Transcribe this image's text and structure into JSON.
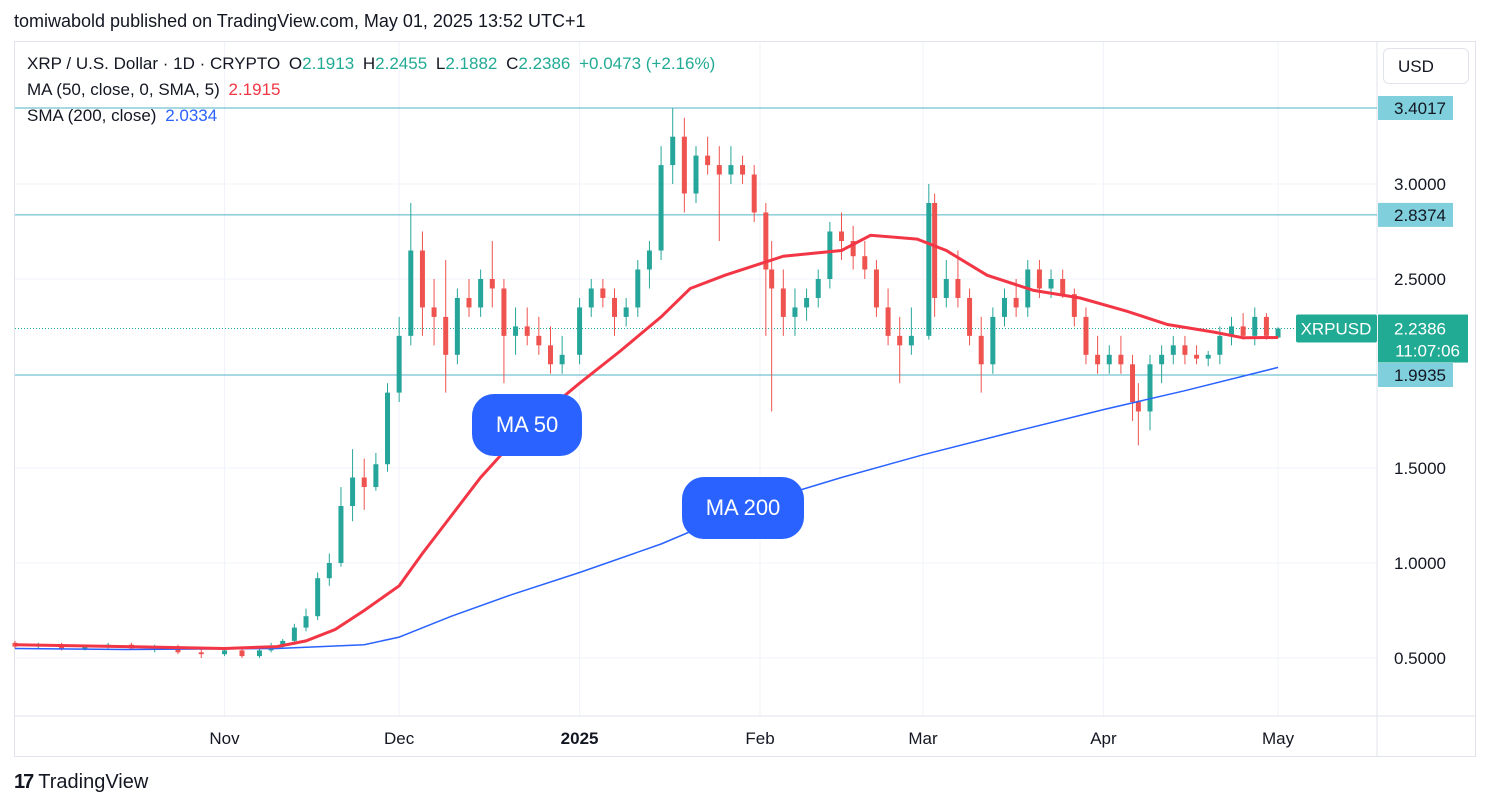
{
  "header": {
    "publisher": "tomiwabold published on TradingView.com, May 01, 2025 13:52 UTC+1"
  },
  "legend": {
    "title": "XRP / U.S. Dollar · 1D · CRYPTO",
    "o_label": "O",
    "o_value": "2.1913",
    "h_label": "H",
    "h_value": "2.2455",
    "l_label": "L",
    "l_value": "2.1882",
    "c_label": "C",
    "c_value": "2.2386",
    "change": "+0.0473 (+2.16%)",
    "ma50_label": "MA (50, close, 0, SMA, 5)",
    "ma50_value": "2.1915",
    "sma200_label": "SMA (200, close)",
    "sma200_value": "2.0334"
  },
  "currency_button": "USD",
  "callouts": {
    "ma50": "MA 50",
    "ma200": "MA 200"
  },
  "footer": {
    "logo_text": "TradingView",
    "logo_icon": "tradingview-logo-icon"
  },
  "colors": {
    "up": "#26a69a",
    "down": "#ef5350",
    "ma50": "#f23645",
    "sma200": "#2962ff",
    "hline": "#4fb3c4",
    "price_label": "#7fcfdc",
    "last_price": "#22ab94"
  },
  "chart_data": {
    "type": "candlestick",
    "symbol": "XRPUSD",
    "interval": "1D",
    "y_ticks": [
      0.5,
      1.0,
      1.5,
      2.5,
      3.0
    ],
    "y_tick_labels": [
      "0.5000",
      "1.0000",
      "1.5000",
      "2.5000",
      "3.0000"
    ],
    "ylim": [
      0.2,
      3.75
    ],
    "x_ticks": [
      "2024-11-01",
      "2024-12-01",
      "2025-01-01",
      "2025-02-01",
      "2025-03-01",
      "2025-04-01",
      "2025-05-01"
    ],
    "x_tick_labels": [
      "Nov",
      "Dec",
      "2025",
      "Feb",
      "Mar",
      "Apr",
      "May"
    ],
    "x_range": [
      "2024-09-26",
      "2025-05-18"
    ],
    "horizontal_lines": [
      {
        "value": 3.4017,
        "label": "3.4017"
      },
      {
        "value": 2.8374,
        "label": "2.8374"
      },
      {
        "value": 1.9935,
        "label": "1.9935"
      }
    ],
    "last_price": {
      "value": 2.2386,
      "symbol_label": "XRPUSD",
      "label": "2.2386",
      "countdown": "11:07:06"
    },
    "ma50": [
      [
        "2024-09-26",
        0.57
      ],
      [
        "2024-10-15",
        0.56
      ],
      [
        "2024-11-01",
        0.55
      ],
      [
        "2024-11-10",
        0.56
      ],
      [
        "2024-11-15",
        0.59
      ],
      [
        "2024-11-20",
        0.65
      ],
      [
        "2024-11-25",
        0.75
      ],
      [
        "2024-12-01",
        0.88
      ],
      [
        "2024-12-05",
        1.05
      ],
      [
        "2024-12-10",
        1.25
      ],
      [
        "2024-12-15",
        1.45
      ],
      [
        "2024-12-20",
        1.62
      ],
      [
        "2024-12-25",
        1.77
      ],
      [
        "2025-01-01",
        1.95
      ],
      [
        "2025-01-08",
        2.12
      ],
      [
        "2025-01-15",
        2.3
      ],
      [
        "2025-01-20",
        2.45
      ],
      [
        "2025-01-26",
        2.52
      ],
      [
        "2025-02-01",
        2.58
      ],
      [
        "2025-02-05",
        2.62
      ],
      [
        "2025-02-15",
        2.65
      ],
      [
        "2025-02-20",
        2.73
      ],
      [
        "2025-02-28",
        2.71
      ],
      [
        "2025-03-05",
        2.65
      ],
      [
        "2025-03-12",
        2.52
      ],
      [
        "2025-03-20",
        2.44
      ],
      [
        "2025-03-28",
        2.4
      ],
      [
        "2025-04-05",
        2.33
      ],
      [
        "2025-04-12",
        2.26
      ],
      [
        "2025-04-20",
        2.22
      ],
      [
        "2025-04-25",
        2.19
      ],
      [
        "2025-05-01",
        2.1915
      ]
    ],
    "sma200": [
      [
        "2024-09-26",
        0.55
      ],
      [
        "2024-10-15",
        0.545
      ],
      [
        "2024-11-10",
        0.55
      ],
      [
        "2024-11-25",
        0.57
      ],
      [
        "2024-12-01",
        0.61
      ],
      [
        "2024-12-10",
        0.72
      ],
      [
        "2024-12-20",
        0.83
      ],
      [
        "2025-01-01",
        0.95
      ],
      [
        "2025-01-15",
        1.1
      ],
      [
        "2025-02-01",
        1.32
      ],
      [
        "2025-02-15",
        1.45
      ],
      [
        "2025-03-01",
        1.57
      ],
      [
        "2025-03-15",
        1.68
      ],
      [
        "2025-04-01",
        1.81
      ],
      [
        "2025-04-15",
        1.91
      ],
      [
        "2025-05-01",
        2.0334
      ]
    ],
    "ohlc": [
      [
        "2024-09-26",
        0.58,
        0.59,
        0.55,
        0.56
      ],
      [
        "2024-09-30",
        0.56,
        0.58,
        0.55,
        0.57
      ],
      [
        "2024-10-04",
        0.57,
        0.58,
        0.54,
        0.55
      ],
      [
        "2024-10-08",
        0.55,
        0.57,
        0.54,
        0.56
      ],
      [
        "2024-10-12",
        0.56,
        0.58,
        0.55,
        0.57
      ],
      [
        "2024-10-16",
        0.57,
        0.58,
        0.55,
        0.55
      ],
      [
        "2024-10-20",
        0.55,
        0.57,
        0.53,
        0.56
      ],
      [
        "2024-10-24",
        0.56,
        0.57,
        0.52,
        0.53
      ],
      [
        "2024-10-28",
        0.53,
        0.55,
        0.5,
        0.52
      ],
      [
        "2024-11-01",
        0.52,
        0.55,
        0.51,
        0.54
      ],
      [
        "2024-11-04",
        0.54,
        0.56,
        0.5,
        0.51
      ],
      [
        "2024-11-07",
        0.51,
        0.55,
        0.5,
        0.54
      ],
      [
        "2024-11-09",
        0.54,
        0.58,
        0.53,
        0.56
      ],
      [
        "2024-11-11",
        0.56,
        0.6,
        0.55,
        0.59
      ],
      [
        "2024-11-13",
        0.59,
        0.68,
        0.57,
        0.66
      ],
      [
        "2024-11-15",
        0.66,
        0.76,
        0.64,
        0.72
      ],
      [
        "2024-11-17",
        0.72,
        0.95,
        0.7,
        0.92
      ],
      [
        "2024-11-19",
        0.92,
        1.05,
        0.88,
        1.0
      ],
      [
        "2024-11-21",
        1.0,
        1.4,
        0.98,
        1.3
      ],
      [
        "2024-11-23",
        1.3,
        1.6,
        1.22,
        1.45
      ],
      [
        "2024-11-25",
        1.45,
        1.55,
        1.28,
        1.4
      ],
      [
        "2024-11-27",
        1.4,
        1.58,
        1.38,
        1.52
      ],
      [
        "2024-11-29",
        1.52,
        1.95,
        1.48,
        1.9
      ],
      [
        "2024-12-01",
        1.9,
        2.3,
        1.85,
        2.2
      ],
      [
        "2024-12-03",
        2.2,
        2.9,
        2.15,
        2.65
      ],
      [
        "2024-12-05",
        2.65,
        2.75,
        2.2,
        2.35
      ],
      [
        "2024-12-07",
        2.35,
        2.5,
        2.15,
        2.3
      ],
      [
        "2024-12-09",
        2.3,
        2.6,
        1.9,
        2.1
      ],
      [
        "2024-12-11",
        2.1,
        2.45,
        2.05,
        2.4
      ],
      [
        "2024-12-13",
        2.4,
        2.5,
        2.3,
        2.35
      ],
      [
        "2024-12-15",
        2.35,
        2.55,
        2.3,
        2.5
      ],
      [
        "2024-12-17",
        2.5,
        2.7,
        2.35,
        2.45
      ],
      [
        "2024-12-19",
        2.45,
        2.5,
        1.95,
        2.2
      ],
      [
        "2024-12-21",
        2.2,
        2.35,
        2.1,
        2.25
      ],
      [
        "2024-12-23",
        2.25,
        2.35,
        2.15,
        2.2
      ],
      [
        "2024-12-25",
        2.2,
        2.3,
        2.1,
        2.15
      ],
      [
        "2024-12-27",
        2.15,
        2.25,
        2.0,
        2.05
      ],
      [
        "2024-12-29",
        2.05,
        2.2,
        2.0,
        2.1
      ],
      [
        "2025-01-01",
        2.1,
        2.4,
        2.05,
        2.35
      ],
      [
        "2025-01-03",
        2.35,
        2.5,
        2.3,
        2.45
      ],
      [
        "2025-01-05",
        2.45,
        2.5,
        2.35,
        2.4
      ],
      [
        "2025-01-07",
        2.4,
        2.45,
        2.2,
        2.3
      ],
      [
        "2025-01-09",
        2.3,
        2.4,
        2.25,
        2.35
      ],
      [
        "2025-01-11",
        2.35,
        2.6,
        2.3,
        2.55
      ],
      [
        "2025-01-13",
        2.55,
        2.7,
        2.45,
        2.65
      ],
      [
        "2025-01-15",
        2.65,
        3.2,
        2.6,
        3.1
      ],
      [
        "2025-01-17",
        3.1,
        3.4,
        3.0,
        3.25
      ],
      [
        "2025-01-19",
        3.25,
        3.35,
        2.85,
        2.95
      ],
      [
        "2025-01-21",
        2.95,
        3.2,
        2.9,
        3.15
      ],
      [
        "2025-01-23",
        3.15,
        3.25,
        3.05,
        3.1
      ],
      [
        "2025-01-25",
        3.1,
        3.2,
        2.7,
        3.05
      ],
      [
        "2025-01-27",
        3.05,
        3.2,
        3.0,
        3.1
      ],
      [
        "2025-01-29",
        3.1,
        3.15,
        3.0,
        3.05
      ],
      [
        "2025-01-31",
        3.05,
        3.1,
        2.8,
        2.85
      ],
      [
        "2025-02-02",
        2.85,
        2.9,
        2.2,
        2.55
      ],
      [
        "2025-02-03",
        2.55,
        2.7,
        1.8,
        2.45
      ],
      [
        "2025-02-05",
        2.45,
        2.55,
        2.2,
        2.3
      ],
      [
        "2025-02-07",
        2.3,
        2.45,
        2.2,
        2.35
      ],
      [
        "2025-02-09",
        2.35,
        2.45,
        2.28,
        2.4
      ],
      [
        "2025-02-11",
        2.4,
        2.55,
        2.35,
        2.5
      ],
      [
        "2025-02-13",
        2.5,
        2.8,
        2.45,
        2.75
      ],
      [
        "2025-02-15",
        2.75,
        2.85,
        2.6,
        2.7
      ],
      [
        "2025-02-17",
        2.7,
        2.78,
        2.55,
        2.62
      ],
      [
        "2025-02-19",
        2.62,
        2.7,
        2.5,
        2.55
      ],
      [
        "2025-02-21",
        2.55,
        2.6,
        2.3,
        2.35
      ],
      [
        "2025-02-23",
        2.35,
        2.45,
        2.15,
        2.2
      ],
      [
        "2025-02-25",
        2.2,
        2.3,
        1.95,
        2.15
      ],
      [
        "2025-02-27",
        2.15,
        2.35,
        2.1,
        2.2
      ],
      [
        "2025-03-02",
        2.2,
        3.0,
        2.18,
        2.9
      ],
      [
        "2025-03-03",
        2.9,
        2.95,
        2.3,
        2.4
      ],
      [
        "2025-03-05",
        2.4,
        2.6,
        2.35,
        2.5
      ],
      [
        "2025-03-07",
        2.5,
        2.65,
        2.35,
        2.4
      ],
      [
        "2025-03-09",
        2.4,
        2.45,
        2.15,
        2.2
      ],
      [
        "2025-03-11",
        2.2,
        2.3,
        1.9,
        2.05
      ],
      [
        "2025-03-13",
        2.05,
        2.35,
        2.0,
        2.3
      ],
      [
        "2025-03-15",
        2.3,
        2.45,
        2.25,
        2.4
      ],
      [
        "2025-03-17",
        2.4,
        2.5,
        2.3,
        2.35
      ],
      [
        "2025-03-19",
        2.35,
        2.6,
        2.3,
        2.55
      ],
      [
        "2025-03-21",
        2.55,
        2.6,
        2.4,
        2.45
      ],
      [
        "2025-03-23",
        2.45,
        2.55,
        2.4,
        2.5
      ],
      [
        "2025-03-25",
        2.5,
        2.55,
        2.4,
        2.42
      ],
      [
        "2025-03-27",
        2.42,
        2.45,
        2.25,
        2.3
      ],
      [
        "2025-03-29",
        2.3,
        2.35,
        2.05,
        2.1
      ],
      [
        "2025-03-31",
        2.1,
        2.2,
        2.0,
        2.05
      ],
      [
        "2025-04-02",
        2.05,
        2.15,
        2.0,
        2.1
      ],
      [
        "2025-04-04",
        2.1,
        2.2,
        2.0,
        2.05
      ],
      [
        "2025-04-06",
        2.05,
        2.1,
        1.75,
        1.85
      ],
      [
        "2025-04-07",
        1.85,
        1.95,
        1.62,
        1.8
      ],
      [
        "2025-04-09",
        1.8,
        2.1,
        1.7,
        2.05
      ],
      [
        "2025-04-11",
        2.05,
        2.15,
        1.95,
        2.1
      ],
      [
        "2025-04-13",
        2.1,
        2.2,
        2.05,
        2.15
      ],
      [
        "2025-04-15",
        2.15,
        2.2,
        2.05,
        2.1
      ],
      [
        "2025-04-17",
        2.1,
        2.15,
        2.05,
        2.08
      ],
      [
        "2025-04-19",
        2.08,
        2.12,
        2.04,
        2.1
      ],
      [
        "2025-04-21",
        2.1,
        2.25,
        2.05,
        2.2
      ],
      [
        "2025-04-23",
        2.2,
        2.3,
        2.15,
        2.25
      ],
      [
        "2025-04-25",
        2.25,
        2.32,
        2.18,
        2.2
      ],
      [
        "2025-04-27",
        2.2,
        2.35,
        2.15,
        2.3
      ],
      [
        "2025-04-29",
        2.3,
        2.32,
        2.18,
        2.2
      ],
      [
        "2025-05-01",
        2.1913,
        2.2455,
        2.1882,
        2.2386
      ]
    ]
  }
}
